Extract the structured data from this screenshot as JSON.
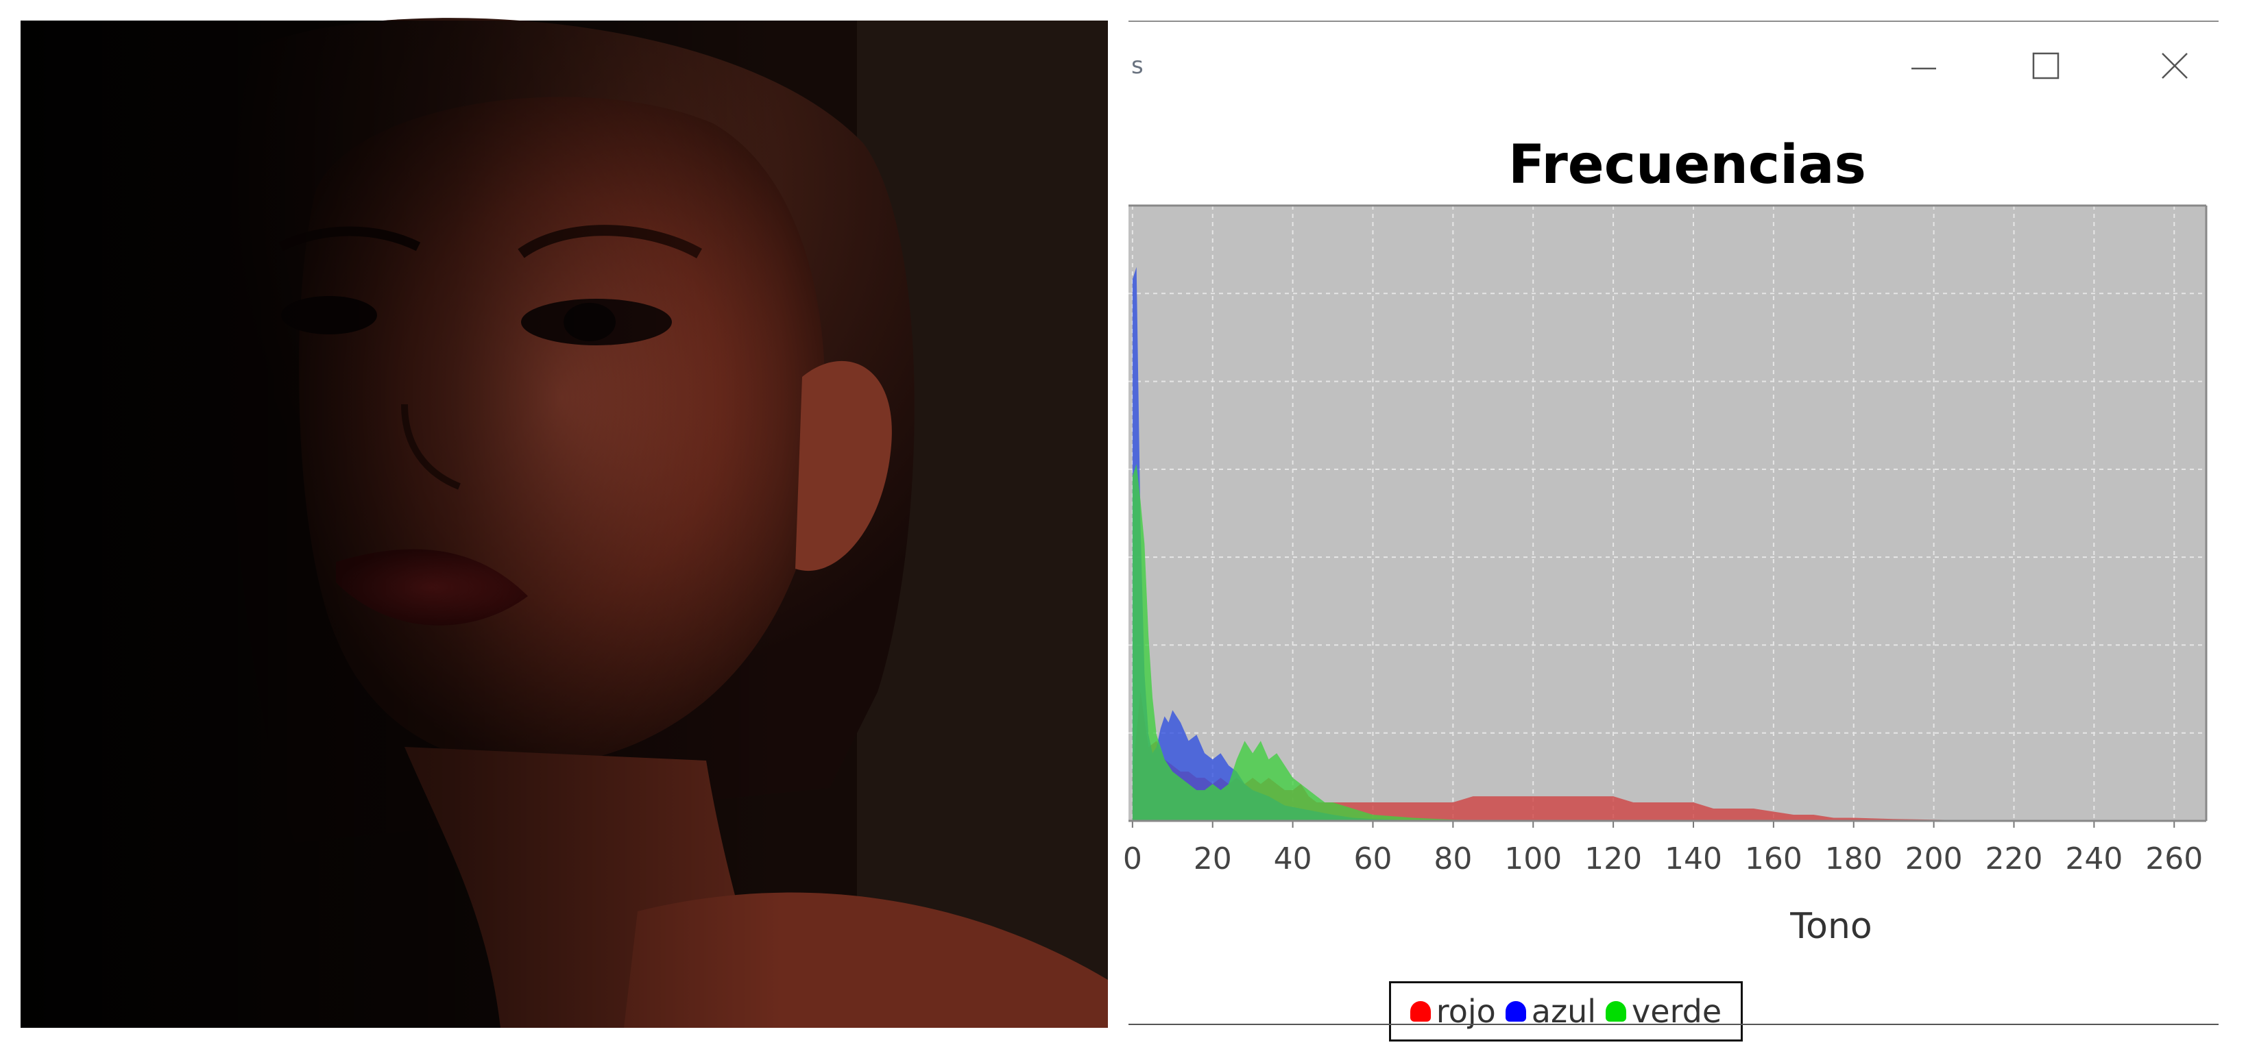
{
  "window": {
    "title_fragment": "s",
    "controls": [
      "minimize",
      "maximize",
      "close"
    ]
  },
  "photo": {
    "icon": "portrait-photo"
  },
  "chart_data": {
    "type": "area",
    "title": "Frecuencias",
    "xlabel": "Tono",
    "ylabel": "",
    "xlim": [
      -1,
      268
    ],
    "ylim": [
      0,
      100
    ],
    "grid": true,
    "x_ticks": [
      "0",
      "20",
      "40",
      "60",
      "80",
      "100",
      "120",
      "140",
      "160",
      "180",
      "200",
      "220",
      "240",
      "260"
    ],
    "legend": {
      "placement": "bottom-center",
      "entries": [
        {
          "name": "rojo",
          "color": "#ff0000"
        },
        {
          "name": "azul",
          "color": "#0000ff"
        },
        {
          "name": "verde",
          "color": "#00ff00"
        }
      ]
    },
    "series": [
      {
        "name": "rojo",
        "color": "#d04040",
        "x": [
          0,
          2,
          4,
          6,
          8,
          10,
          12,
          14,
          16,
          18,
          20,
          22,
          24,
          26,
          28,
          30,
          32,
          34,
          36,
          38,
          40,
          42,
          44,
          46,
          48,
          50,
          52,
          54,
          56,
          58,
          60,
          65,
          70,
          75,
          80,
          85,
          90,
          95,
          100,
          105,
          110,
          115,
          120,
          125,
          130,
          135,
          140,
          145,
          150,
          155,
          160,
          165,
          170,
          175,
          180,
          190,
          200,
          210,
          220,
          240,
          260
        ],
        "y": [
          8,
          21,
          12,
          13,
          10,
          9,
          8,
          8,
          7,
          7,
          6,
          7,
          6,
          7,
          6,
          7,
          6,
          7,
          6,
          5,
          5,
          6,
          4,
          3,
          3,
          3,
          3,
          3,
          3,
          3,
          3,
          3,
          3,
          3,
          3,
          4,
          4,
          4,
          4,
          4,
          4,
          4,
          4,
          3,
          3,
          3,
          3,
          2,
          2,
          2,
          1.5,
          1,
          1,
          0.5,
          0.5,
          0.3,
          0.2,
          0.1,
          0.05,
          0,
          0
        ]
      },
      {
        "name": "azul",
        "color": "#3050e0",
        "x": [
          0,
          1,
          2,
          3,
          4,
          5,
          6,
          7,
          8,
          9,
          10,
          12,
          14,
          16,
          18,
          20,
          22,
          24,
          26,
          28,
          30,
          34,
          38,
          42,
          46,
          50,
          55,
          60,
          70,
          80,
          100,
          150,
          200,
          260
        ],
        "y": [
          88,
          90,
          48,
          24,
          14,
          11,
          12,
          15,
          17,
          16,
          18,
          16,
          13,
          14,
          11,
          10,
          11,
          9,
          8,
          6,
          5,
          4,
          2.5,
          2,
          1.5,
          1,
          0.5,
          0.3,
          0.1,
          0,
          0,
          0,
          0,
          0
        ]
      },
      {
        "name": "verde",
        "color": "#40d040",
        "x": [
          0,
          1,
          2,
          3,
          4,
          5,
          6,
          8,
          10,
          12,
          14,
          16,
          18,
          20,
          22,
          24,
          26,
          28,
          30,
          32,
          34,
          36,
          38,
          40,
          42,
          44,
          46,
          48,
          50,
          55,
          60,
          70,
          80,
          100,
          150,
          200,
          260
        ],
        "y": [
          56,
          58,
          52,
          45,
          30,
          20,
          14,
          10,
          8,
          7,
          6,
          5,
          5,
          6,
          5,
          6,
          10,
          13,
          11,
          13,
          10,
          11,
          9,
          7,
          6,
          5,
          4,
          3,
          3,
          2,
          1,
          0.5,
          0.2,
          0,
          0,
          0,
          0
        ]
      }
    ]
  }
}
